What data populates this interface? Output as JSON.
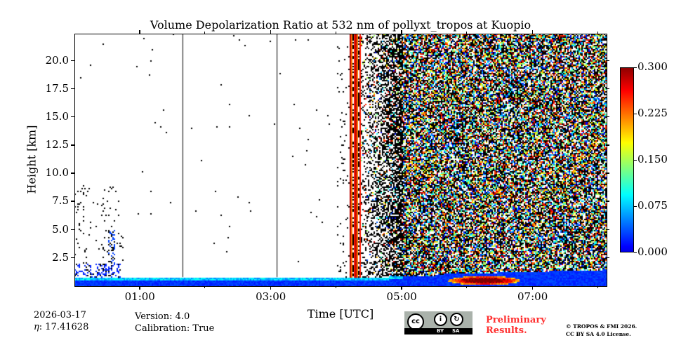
{
  "chart_data": {
    "type": "heatmap",
    "title": "Volume Depolarization Ratio at 532 nm of pollyxt_tropos at Kuopio",
    "xlabel": "Time [UTC]",
    "ylabel": "Height [km]",
    "xlim_hours": [
      0.0,
      8.13
    ],
    "ylim": [
      0.0,
      22.4
    ],
    "x_ticks": [
      {
        "value": 1,
        "label": "01:00"
      },
      {
        "value": 3,
        "label": "03:00"
      },
      {
        "value": 5,
        "label": "05:00"
      },
      {
        "value": 7,
        "label": "07:00"
      }
    ],
    "x_minor_ticks": [
      2,
      4,
      6,
      8
    ],
    "y_ticks": [
      {
        "value": 2.5,
        "label": "2.5"
      },
      {
        "value": 5,
        "label": "5.0"
      },
      {
        "value": 7.5,
        "label": "7.5"
      },
      {
        "value": 10,
        "label": "10.0"
      },
      {
        "value": 12.5,
        "label": "12.5"
      },
      {
        "value": 15,
        "label": "15.0"
      },
      {
        "value": 17.5,
        "label": "17.5"
      },
      {
        "value": 20,
        "label": "20.0"
      }
    ],
    "colorbar": {
      "range": [
        0.0,
        0.3
      ],
      "colormap": "jet",
      "ticks": [
        {
          "value": 0,
          "label": "0.000"
        },
        {
          "value": 0.075,
          "label": "0.075"
        },
        {
          "value": 0.15,
          "label": "0.150"
        },
        {
          "value": 0.225,
          "label": "0.225"
        },
        {
          "value": 0.3,
          "label": "0.300"
        }
      ]
    },
    "regions": [
      {
        "kind": "boundary_layer",
        "t": [
          0.0,
          8.13
        ],
        "h": [
          0.0,
          0.8
        ],
        "value": 0.02
      },
      {
        "kind": "boundary_layer_thick",
        "t": [
          5.5,
          8.13
        ],
        "h": [
          0.0,
          1.6
        ],
        "value": 0.03
      },
      {
        "kind": "elevated_high_depol",
        "t": [
          5.7,
          6.8
        ],
        "h": [
          0.2,
          1.0
        ],
        "value": 0.22
      },
      {
        "kind": "low_cloud_sparse",
        "t": [
          0.0,
          0.7
        ],
        "h": [
          0.8,
          2.0
        ],
        "value": 0.02
      },
      {
        "kind": "column",
        "t": [
          0.52,
          0.62
        ],
        "h": [
          0.8,
          5.0
        ],
        "value": 0.03
      },
      {
        "kind": "line",
        "t": [
          1.65,
          1.66
        ],
        "value": "none"
      },
      {
        "kind": "line",
        "t": [
          3.09,
          3.1
        ],
        "value": "none"
      },
      {
        "kind": "saturated_lines",
        "t": [
          4.2,
          4.36
        ],
        "value": 0.25
      },
      {
        "kind": "noisy_stripes",
        "t": [
          4.36,
          5.0
        ],
        "value": "noise"
      },
      {
        "kind": "full_noise",
        "t": [
          5.0,
          8.13
        ],
        "h": [
          1.0,
          22.4
        ],
        "value": "noise"
      }
    ]
  },
  "info": {
    "date": "2026-03-17",
    "eta": ": 17.41628",
    "eta_symbol": "η",
    "version": "Version: 4.0",
    "calibration": "Calibration: True"
  },
  "license": {
    "cc_label": "cc",
    "by": "BY",
    "sa": "SA",
    "preliminary_1": "Preliminary",
    "preliminary_2": "Results.",
    "copyright_1": "© TROPOS & FMI 2026.",
    "copyright_2": "CC BY SA 4.0 License."
  },
  "colors": {
    "preliminary": "#ff3030"
  }
}
